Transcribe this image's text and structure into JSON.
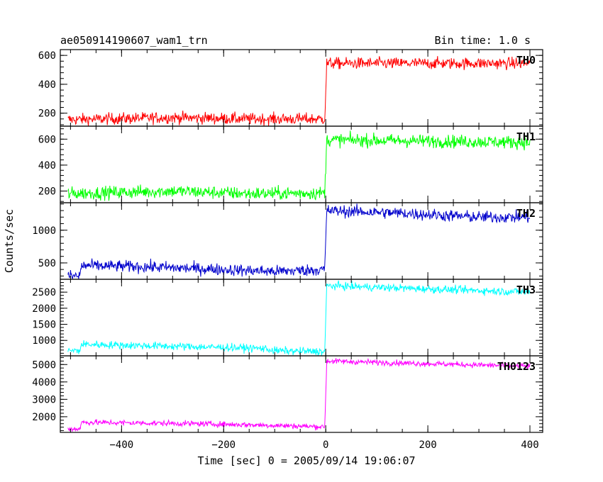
{
  "chart_data": {
    "type": "line",
    "title": "ae050914190607_wam1_trn",
    "subtitle": "Bin time: 1.0 s",
    "xlabel": "Time [sec] 0 = 2005/09/14 19:06:07",
    "ylabel": "Counts/sec",
    "xlim": [
      -520,
      425
    ],
    "xticks": [
      -400,
      -200,
      0,
      200,
      400
    ],
    "xtick_labels": [
      "−400",
      "−200",
      "0",
      "200",
      "400"
    ],
    "grid": false,
    "panels": [
      {
        "name": "TH0",
        "color": "#ff0000",
        "ylim": [
          110,
          640
        ],
        "yticks": [
          200,
          400,
          600
        ],
        "ytick_labels": [
          "200",
          "400",
          "600"
        ],
        "series": [
          {
            "x": -505,
            "y": 155
          },
          {
            "x": -300,
            "y": 170
          },
          {
            "x": -150,
            "y": 160
          },
          {
            "x": -2,
            "y": 160
          },
          {
            "x": 2,
            "y": 545
          },
          {
            "x": 200,
            "y": 545
          },
          {
            "x": 400,
            "y": 545
          }
        ],
        "noise": 20
      },
      {
        "name": "TH1",
        "color": "#00ff00",
        "ylim": [
          110,
          700
        ],
        "yticks": [
          200,
          400,
          600
        ],
        "ytick_labels": [
          "200",
          "400",
          "600"
        ],
        "series": [
          {
            "x": -505,
            "y": 180
          },
          {
            "x": -300,
            "y": 200
          },
          {
            "x": -150,
            "y": 180
          },
          {
            "x": -2,
            "y": 185
          },
          {
            "x": 2,
            "y": 595
          },
          {
            "x": 200,
            "y": 585
          },
          {
            "x": 400,
            "y": 575
          }
        ],
        "noise": 25
      },
      {
        "name": "TH2",
        "color": "#0000cc",
        "ylim": [
          250,
          1420
        ],
        "yticks": [
          500,
          1000
        ],
        "ytick_labels": [
          "500",
          "1000"
        ],
        "series": [
          {
            "x": -505,
            "y": 300
          },
          {
            "x": -482,
            "y": 300
          },
          {
            "x": -478,
            "y": 460
          },
          {
            "x": -350,
            "y": 440
          },
          {
            "x": -100,
            "y": 370
          },
          {
            "x": -2,
            "y": 400
          },
          {
            "x": 2,
            "y": 1300
          },
          {
            "x": 150,
            "y": 1260
          },
          {
            "x": 300,
            "y": 1200
          },
          {
            "x": 400,
            "y": 1200
          }
        ],
        "noise": 45
      },
      {
        "name": "TH3",
        "color": "#00ffff",
        "ylim": [
          520,
          2900
        ],
        "yticks": [
          1000,
          1500,
          2000,
          2500
        ],
        "ytick_labels": [
          "1000",
          "1500",
          "2000",
          "2500"
        ],
        "series": [
          {
            "x": -505,
            "y": 680
          },
          {
            "x": -482,
            "y": 680
          },
          {
            "x": -478,
            "y": 880
          },
          {
            "x": -250,
            "y": 800
          },
          {
            "x": -120,
            "y": 750
          },
          {
            "x": -100,
            "y": 680
          },
          {
            "x": -2,
            "y": 650
          },
          {
            "x": 2,
            "y": 2700
          },
          {
            "x": 200,
            "y": 2600
          },
          {
            "x": 400,
            "y": 2500
          }
        ],
        "noise": 60
      },
      {
        "name": "TH0123",
        "color": "#ff00ff",
        "ylim": [
          1100,
          5500
        ],
        "yticks": [
          2000,
          3000,
          4000,
          5000
        ],
        "ytick_labels": [
          "2000",
          "3000",
          "4000",
          "5000"
        ],
        "series": [
          {
            "x": -505,
            "y": 1300
          },
          {
            "x": -482,
            "y": 1300
          },
          {
            "x": -478,
            "y": 1680
          },
          {
            "x": -250,
            "y": 1600
          },
          {
            "x": -100,
            "y": 1500
          },
          {
            "x": -2,
            "y": 1420
          },
          {
            "x": 2,
            "y": 5200
          },
          {
            "x": 200,
            "y": 5050
          },
          {
            "x": 400,
            "y": 4900
          }
        ],
        "noise": 80
      }
    ]
  }
}
